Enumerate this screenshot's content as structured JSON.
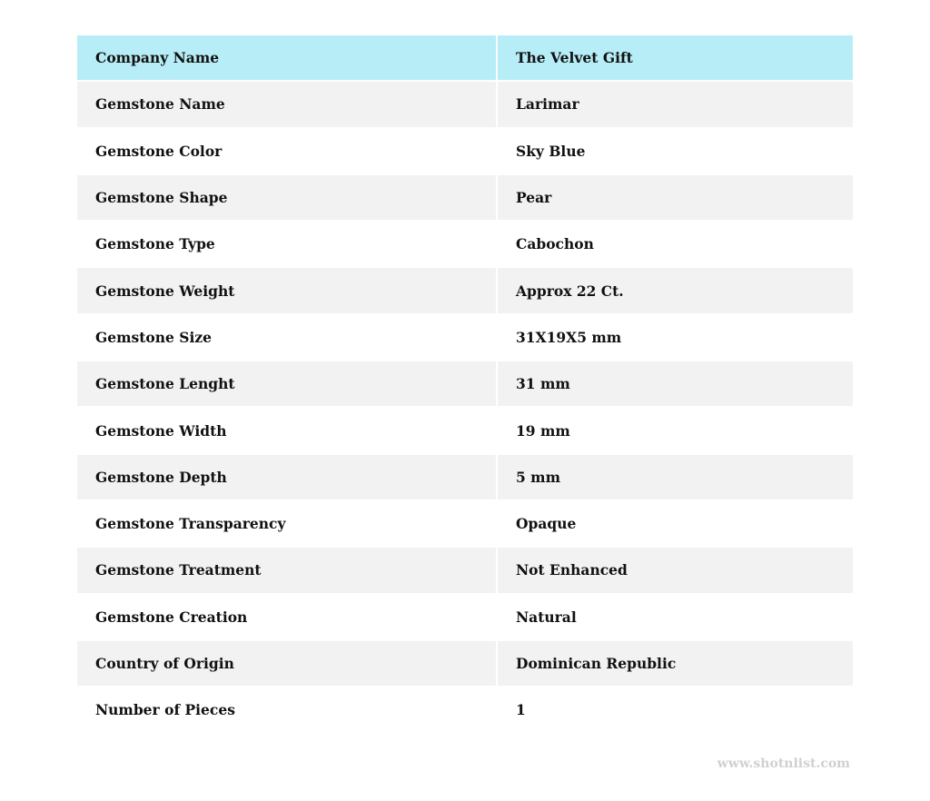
{
  "colors": {
    "header_bg": "#b7edf7",
    "stripe_bg": "#f2f2f2"
  },
  "rows": [
    {
      "label": "Company Name",
      "value": "The Velvet Gift"
    },
    {
      "label": "Gemstone Name",
      "value": "Larimar"
    },
    {
      "label": "Gemstone Color",
      "value": "Sky Blue"
    },
    {
      "label": "Gemstone Shape",
      "value": "Pear"
    },
    {
      "label": "Gemstone Type",
      "value": "Cabochon"
    },
    {
      "label": "Gemstone Weight",
      "value": "Approx 22 Ct."
    },
    {
      "label": "Gemstone Size",
      "value": "31X19X5 mm"
    },
    {
      "label": "Gemstone Lenght",
      "value": "31 mm"
    },
    {
      "label": "Gemstone Width",
      "value": "19 mm"
    },
    {
      "label": "Gemstone Depth",
      "value": "5 mm"
    },
    {
      "label": "Gemstone Transparency",
      "value": "Opaque"
    },
    {
      "label": "Gemstone Treatment",
      "value": "Not Enhanced"
    },
    {
      "label": "Gemstone Creation",
      "value": "Natural"
    },
    {
      "label": "Country of Origin",
      "value": "Dominican Republic"
    },
    {
      "label": "Number of Pieces",
      "value": "1"
    }
  ],
  "watermark": "www.shotnlist.com"
}
